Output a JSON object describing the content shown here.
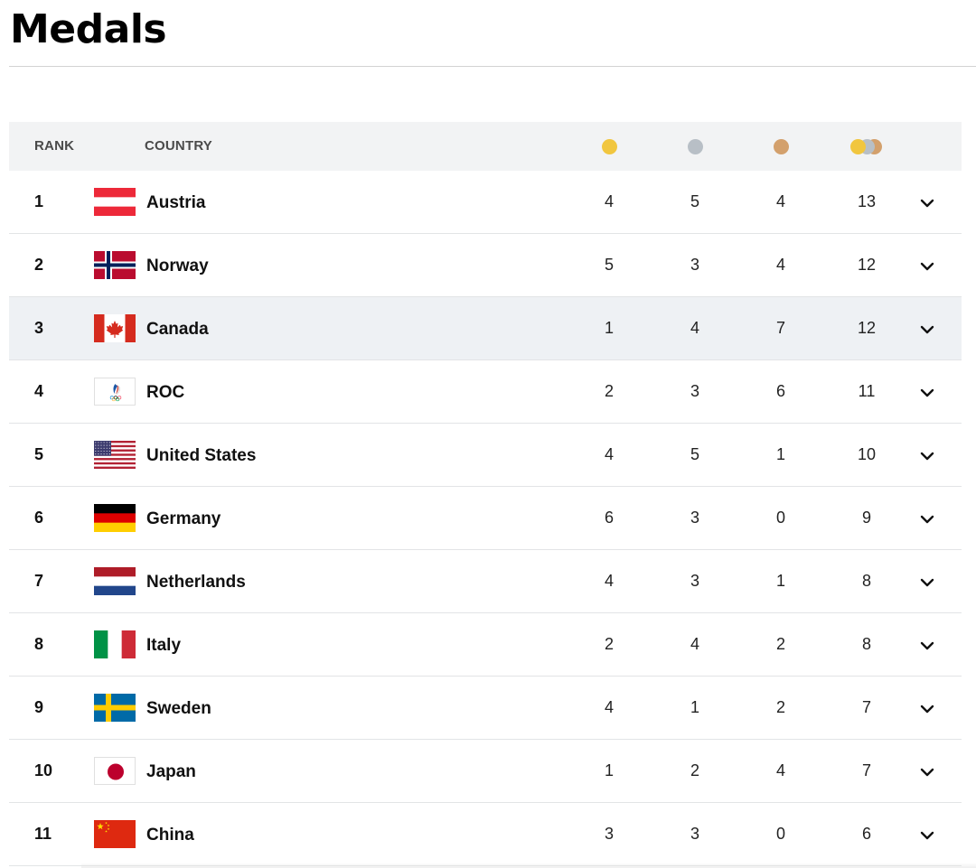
{
  "page": {
    "title": "Medals"
  },
  "colors": {
    "gold": "#f1c63f",
    "silver": "#b8bfc6",
    "bronze": "#d3a06c",
    "header_bg": "#f2f3f4",
    "highlight_row": "#eef1f4"
  },
  "table": {
    "headers": {
      "rank": "RANK",
      "country": "COUNTRY"
    },
    "medal_columns": [
      "gold-medal-icon",
      "silver-medal-icon",
      "bronze-medal-icon",
      "total-medals-icon"
    ],
    "highlighted_rank": "3",
    "rows": [
      {
        "rank": "1",
        "country": "Austria",
        "flag": "austria-flag-icon",
        "gold": "4",
        "silver": "5",
        "bronze": "4",
        "total": "13"
      },
      {
        "rank": "2",
        "country": "Norway",
        "flag": "norway-flag-icon",
        "gold": "5",
        "silver": "3",
        "bronze": "4",
        "total": "12"
      },
      {
        "rank": "3",
        "country": "Canada",
        "flag": "canada-flag-icon",
        "gold": "1",
        "silver": "4",
        "bronze": "7",
        "total": "12"
      },
      {
        "rank": "4",
        "country": "ROC",
        "flag": "roc-flag-icon",
        "gold": "2",
        "silver": "3",
        "bronze": "6",
        "total": "11"
      },
      {
        "rank": "5",
        "country": "United States",
        "flag": "united-states-flag-icon",
        "gold": "4",
        "silver": "5",
        "bronze": "1",
        "total": "10"
      },
      {
        "rank": "6",
        "country": "Germany",
        "flag": "germany-flag-icon",
        "gold": "6",
        "silver": "3",
        "bronze": "0",
        "total": "9"
      },
      {
        "rank": "7",
        "country": "Netherlands",
        "flag": "netherlands-flag-icon",
        "gold": "4",
        "silver": "3",
        "bronze": "1",
        "total": "8"
      },
      {
        "rank": "8",
        "country": "Italy",
        "flag": "italy-flag-icon",
        "gold": "2",
        "silver": "4",
        "bronze": "2",
        "total": "8"
      },
      {
        "rank": "9",
        "country": "Sweden",
        "flag": "sweden-flag-icon",
        "gold": "4",
        "silver": "1",
        "bronze": "2",
        "total": "7"
      },
      {
        "rank": "10",
        "country": "Japan",
        "flag": "japan-flag-icon",
        "gold": "1",
        "silver": "2",
        "bronze": "4",
        "total": "7"
      },
      {
        "rank": "11",
        "country": "China",
        "flag": "china-flag-icon",
        "gold": "3",
        "silver": "3",
        "bronze": "0",
        "total": "6"
      }
    ]
  }
}
